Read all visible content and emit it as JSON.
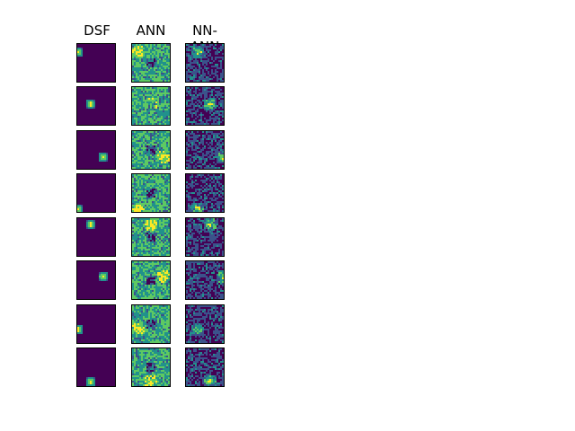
{
  "figure": {
    "columns": [
      {
        "id": "dsf",
        "title": "DSF"
      },
      {
        "id": "ann",
        "title": "ANN"
      },
      {
        "id": "nnann",
        "title": "NN-ANN"
      }
    ],
    "rows": 8,
    "colormap": [
      "#440154",
      "#3b528b",
      "#21918c",
      "#5ec962",
      "#fde725"
    ]
  }
}
